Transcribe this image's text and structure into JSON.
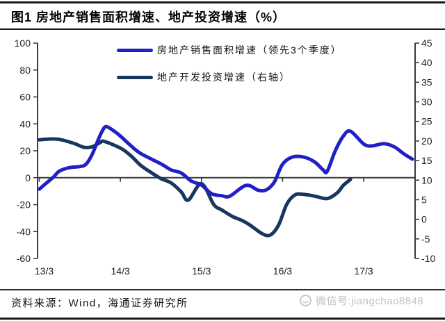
{
  "header": {
    "title": "图1  房地产销售面积增速、地产投资增速（%）"
  },
  "footer": {
    "source": "资料来源：Wind，海通证券研究所",
    "watermark": "微信号:jiangchao8848"
  },
  "colors": {
    "sales_line": "#2020c6",
    "investment_line": "#17375e",
    "axis": "#3a3a3a",
    "tick_label": "#1c1c1c",
    "watermark_gray": "#c2c2c2"
  },
  "chart_data": {
    "type": "line",
    "title": "房地产销售面积增速、地产投资增速（%）",
    "x_axis": {
      "tick_labels": [
        "13/3",
        "14/3",
        "15/3",
        "16/3",
        "17/3"
      ],
      "tick_positions_quarters": [
        0,
        4,
        8,
        12,
        16
      ],
      "unit": "year/month, quarterly; t = quarters since 13/3"
    },
    "left_axis": {
      "min": -60,
      "max": 100,
      "tick_labels": [
        "100",
        "80",
        "60",
        "40",
        "20",
        "0",
        "-20",
        "-40",
        "-60"
      ]
    },
    "right_axis": {
      "min": -10,
      "max": 45,
      "tick_labels": [
        "45",
        "40",
        "35",
        "30",
        "25",
        "20",
        "15",
        "10",
        "5",
        "0",
        "-5",
        "-10"
      ]
    },
    "grid": "zero-line only",
    "legend_position": "top-center-inside",
    "series": [
      {
        "name": "房地产销售面积增速（领先3个季度）",
        "axis": "left",
        "color": "#2020c6",
        "stroke_width": 5,
        "points": [
          [
            0,
            -8.5
          ],
          [
            0.35,
            -4
          ],
          [
            0.7,
            0.5
          ],
          [
            1,
            5
          ],
          [
            1.5,
            7.5
          ],
          [
            2,
            8.3
          ],
          [
            2.3,
            10
          ],
          [
            2.6,
            17
          ],
          [
            2.9,
            28
          ],
          [
            3.1,
            34.5
          ],
          [
            3.3,
            38
          ],
          [
            3.7,
            34.5
          ],
          [
            4,
            31
          ],
          [
            4.5,
            24
          ],
          [
            5,
            18
          ],
          [
            6,
            10.3
          ],
          [
            6.5,
            5.8
          ],
          [
            7,
            3.5
          ],
          [
            7.5,
            -2.5
          ],
          [
            8,
            -5.5
          ],
          [
            8.5,
            -11.9
          ],
          [
            9,
            -13.4
          ],
          [
            9.4,
            -13.7
          ],
          [
            10.2,
            -5.7
          ],
          [
            10.8,
            -9.3
          ],
          [
            11.2,
            -9
          ],
          [
            11.6,
            -3
          ],
          [
            12,
            10
          ],
          [
            12.5,
            15.4
          ],
          [
            13.1,
            15.1
          ],
          [
            13.6,
            11.5
          ],
          [
            14,
            5.8
          ],
          [
            14.2,
            4.7
          ],
          [
            14.6,
            20
          ],
          [
            15,
            31
          ],
          [
            15.35,
            34.5
          ],
          [
            16,
            25
          ],
          [
            16.4,
            23.6
          ],
          [
            17,
            25.3
          ],
          [
            17.5,
            23
          ],
          [
            18,
            17.5
          ],
          [
            18.4,
            13.8
          ]
        ]
      },
      {
        "name": "地产开发投资增速（右轴）",
        "axis": "right",
        "color": "#17375e",
        "stroke_width": 5,
        "points": [
          [
            0,
            20.3
          ],
          [
            0.5,
            20.5
          ],
          [
            1,
            20.4
          ],
          [
            1.7,
            19.4
          ],
          [
            2.2,
            18.4
          ],
          [
            2.6,
            18.5
          ],
          [
            3,
            19.6
          ],
          [
            3.2,
            19.9
          ],
          [
            4,
            18.2
          ],
          [
            4.5,
            16.3
          ],
          [
            5,
            13.8
          ],
          [
            5.5,
            12
          ],
          [
            6,
            10.4
          ],
          [
            6.5,
            9.3
          ],
          [
            7,
            7
          ],
          [
            7.35,
            4.9
          ],
          [
            8,
            9.1
          ],
          [
            8.6,
            3.8
          ],
          [
            9,
            2.4
          ],
          [
            9.5,
            0.8
          ],
          [
            10,
            -0.3
          ],
          [
            10.4,
            -1.5
          ],
          [
            11,
            -3.7
          ],
          [
            11.4,
            -4
          ],
          [
            11.8,
            -1.5
          ],
          [
            12.2,
            3.8
          ],
          [
            12.6,
            6.2
          ],
          [
            13,
            6.4
          ],
          [
            13.6,
            5.9
          ],
          [
            14.2,
            5.3
          ],
          [
            14.7,
            6.8
          ],
          [
            15,
            8.7
          ],
          [
            15.35,
            10.2
          ]
        ]
      }
    ]
  }
}
